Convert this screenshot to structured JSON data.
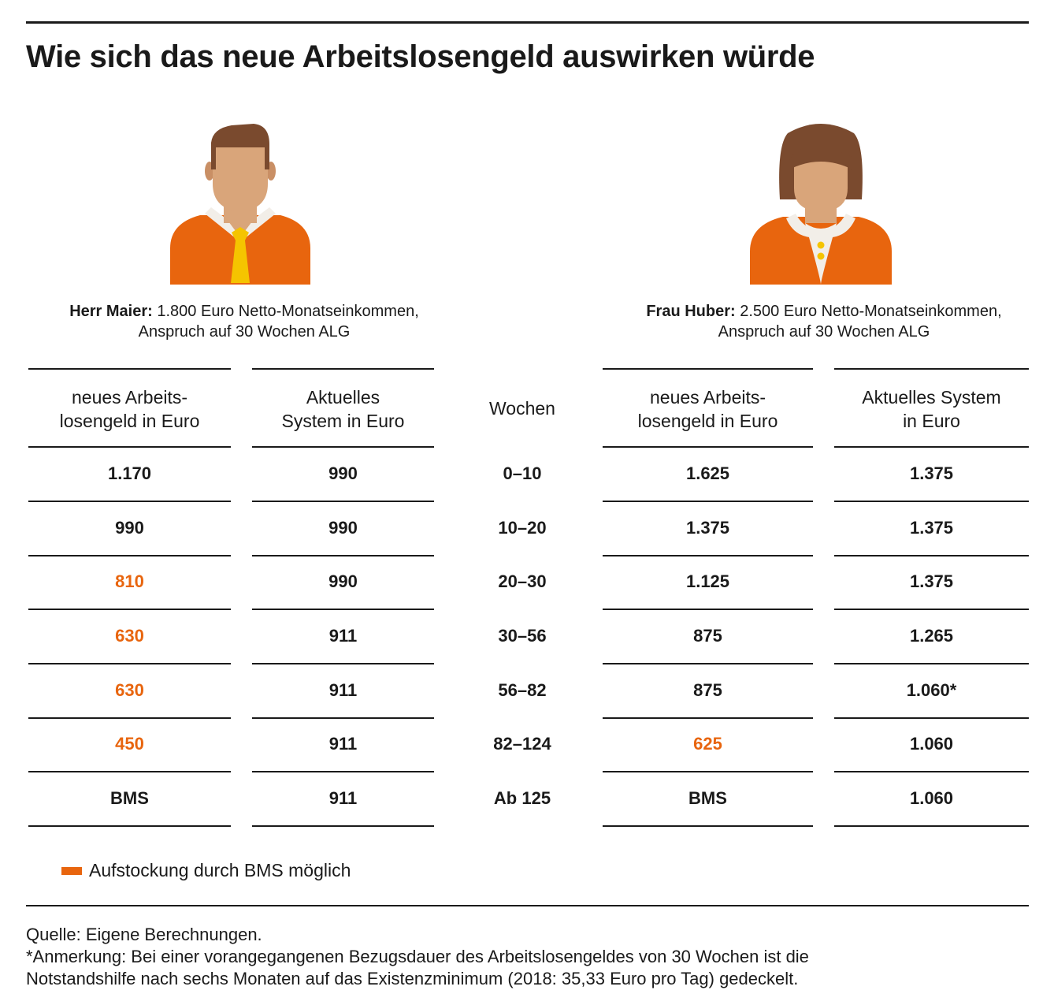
{
  "title": "Wie sich das neue Arbeitslosengeld auswirken würde",
  "colors": {
    "highlight": "#e8650e",
    "shirt": "#e8650e",
    "skin": "#d9a57a",
    "hair": "#7a4a2e",
    "tie": "#f5c400"
  },
  "icons": {
    "left": "man-avatar-icon",
    "right": "woman-avatar-icon"
  },
  "persons": {
    "left": {
      "name": "Herr Maier:",
      "line1": "1.800 Euro Netto-Monatseinkommen,",
      "line2": "Anspruch auf 30 Wochen ALG"
    },
    "right": {
      "name": "Frau Huber:",
      "line1": "2.500 Euro Netto-Monatseinkommen,",
      "line2": "Anspruch auf 30 Wochen ALG"
    }
  },
  "headers": {
    "left_new": [
      "neues Arbeits-",
      "losengeld in Euro"
    ],
    "left_cur": [
      "Aktuelles",
      "System in Euro"
    ],
    "weeks": [
      "Wochen"
    ],
    "right_new": [
      "neues Arbeits-",
      "losengeld in Euro"
    ],
    "right_cur": [
      "Aktuelles System",
      "in Euro"
    ]
  },
  "chart_data": {
    "type": "table",
    "title": "Wie sich das neue Arbeitslosengeld auswirken würde",
    "columns": [
      "neues Arbeitslosengeld in Euro (Herr Maier)",
      "Aktuelles System in Euro (Herr Maier)",
      "Wochen",
      "neues Arbeitslosengeld in Euro (Frau Huber)",
      "Aktuelles System in Euro (Frau Huber)"
    ],
    "rows": [
      {
        "left_new": "1.170",
        "left_new_hl": false,
        "left_cur": "990",
        "weeks": "0–10",
        "right_new": "1.625",
        "right_new_hl": false,
        "right_cur": "1.375"
      },
      {
        "left_new": "990",
        "left_new_hl": false,
        "left_cur": "990",
        "weeks": "10–20",
        "right_new": "1.375",
        "right_new_hl": false,
        "right_cur": "1.375"
      },
      {
        "left_new": "810",
        "left_new_hl": true,
        "left_cur": "990",
        "weeks": "20–30",
        "right_new": "1.125",
        "right_new_hl": false,
        "right_cur": "1.375"
      },
      {
        "left_new": "630",
        "left_new_hl": true,
        "left_cur": "911",
        "weeks": "30–56",
        "right_new": "875",
        "right_new_hl": false,
        "right_cur": "1.265"
      },
      {
        "left_new": "630",
        "left_new_hl": true,
        "left_cur": "911",
        "weeks": "56–82",
        "right_new": "875",
        "right_new_hl": false,
        "right_cur": "1.060*"
      },
      {
        "left_new": "450",
        "left_new_hl": true,
        "left_cur": "911",
        "weeks": "82–124",
        "right_new": "625",
        "right_new_hl": true,
        "right_cur": "1.060"
      },
      {
        "left_new": "BMS",
        "left_new_hl": false,
        "left_cur": "911",
        "weeks": "Ab 125",
        "right_new": "BMS",
        "right_new_hl": false,
        "right_cur": "1.060"
      }
    ]
  },
  "legend": {
    "label": "Aufstockung durch BMS möglich"
  },
  "footer": {
    "source": "Quelle: Eigene Berechnungen.",
    "note1": "*Anmerkung: Bei einer vorangegangenen Bezugsdauer des Arbeitslosengeldes von 30 Wochen ist die",
    "note2": "Notstandshilfe nach sechs Monaten auf das Existenzminimum (2018: 35,33 Euro pro Tag) gedeckelt."
  }
}
